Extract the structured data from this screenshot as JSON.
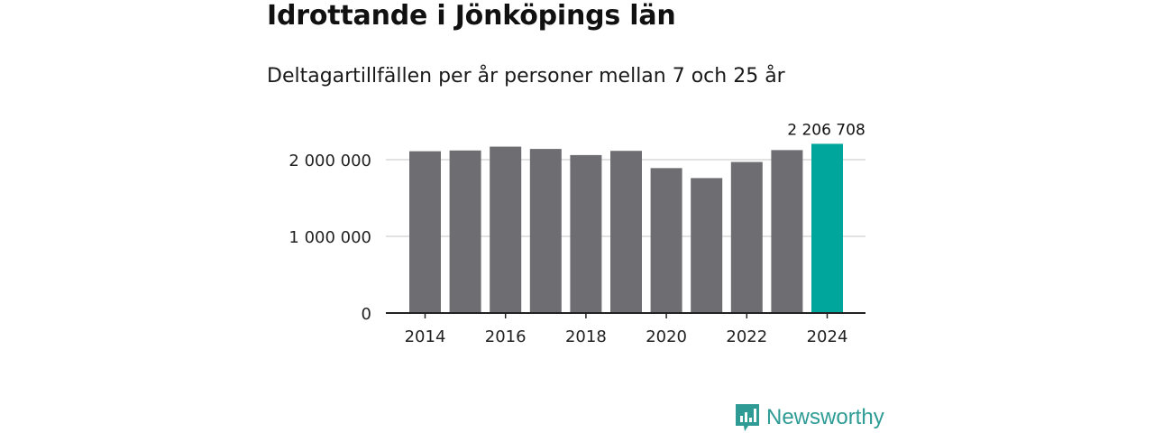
{
  "header": {
    "title": "Idrottande i Jönköpings län",
    "subtitle": "Deltagartillfällen per år personer mellan 7 och 25 år"
  },
  "chart_data": {
    "type": "bar",
    "title": "Idrottande i Jönköpings län",
    "subtitle": "Deltagartillfällen per år personer mellan 7 och 25 år",
    "categories": [
      "2014",
      "2015",
      "2016",
      "2017",
      "2018",
      "2019",
      "2020",
      "2021",
      "2022",
      "2023",
      "2024"
    ],
    "values": [
      2110000,
      2120000,
      2170000,
      2140000,
      2060000,
      2115000,
      1890000,
      1760000,
      1970000,
      2125000,
      2206708
    ],
    "highlight_index": 10,
    "highlight_label": "2 206 708",
    "ylim": [
      0,
      2000000
    ],
    "y_ticks": [
      0,
      1000000,
      2000000
    ],
    "y_tick_labels": [
      "0",
      "1 000 000",
      "2 000 000"
    ],
    "x_tick_labels": [
      "2014",
      "2016",
      "2018",
      "2020",
      "2022",
      "2024"
    ],
    "xlabel": "",
    "ylabel": "",
    "colors": {
      "bar": "#6e6d72",
      "highlight": "#00a69c",
      "grid": "#d9d9d9",
      "axis": "#222222"
    }
  },
  "footer": {
    "brand": "Newsworthy",
    "brand_color": "#2e9c95",
    "logo_icon": "bar-chart-speech-bubble-icon"
  }
}
